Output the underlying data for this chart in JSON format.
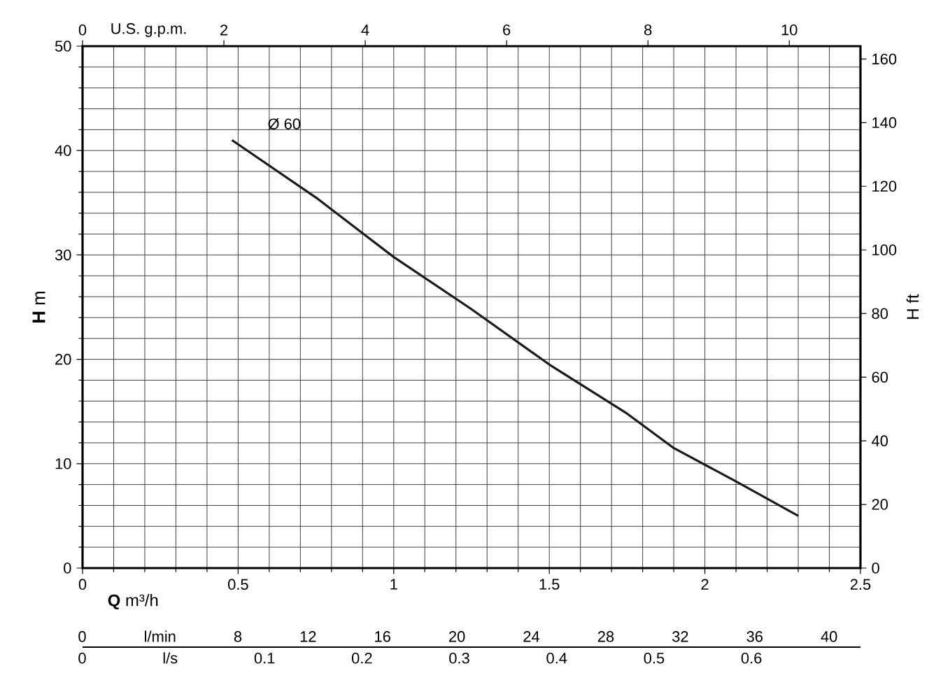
{
  "chart_data": {
    "type": "line",
    "xlabel": "**Q** m³/h",
    "ylabel": "**H** m",
    "y2label": "H ft",
    "x2label": "U.S. g.p.m.",
    "xlim": [
      0,
      2.5
    ],
    "xticks": [
      0,
      0.5,
      1,
      1.5,
      2,
      2.5
    ],
    "ylim": [
      0,
      50
    ],
    "yticks": [
      0,
      10,
      20,
      30,
      40,
      50
    ],
    "y2lim": [
      0,
      164.04
    ],
    "y2ticks": [
      0,
      20,
      40,
      60,
      80,
      100,
      120,
      140,
      160
    ],
    "x2lim": [
      0,
      11.007
    ],
    "x2ticks": [
      0,
      2,
      4,
      6,
      8,
      10
    ],
    "grid": true,
    "annotations": [
      "0 l/min 8 12 16 20 24 28 32 36 40",
      "0 l/s 0.1 0.2 0.3 0.4 0.5 0.6"
    ],
    "series": [
      {
        "name": "Ø 60",
        "color": "#1a1a1a",
        "x": [
          0.48,
          0.75,
          1.0,
          1.25,
          1.5,
          1.75,
          1.9,
          2.1,
          2.3
        ],
        "values": [
          41,
          35.5,
          29.8,
          24.8,
          19.5,
          14.8,
          11.5,
          8.3,
          5
        ]
      }
    ]
  }
}
